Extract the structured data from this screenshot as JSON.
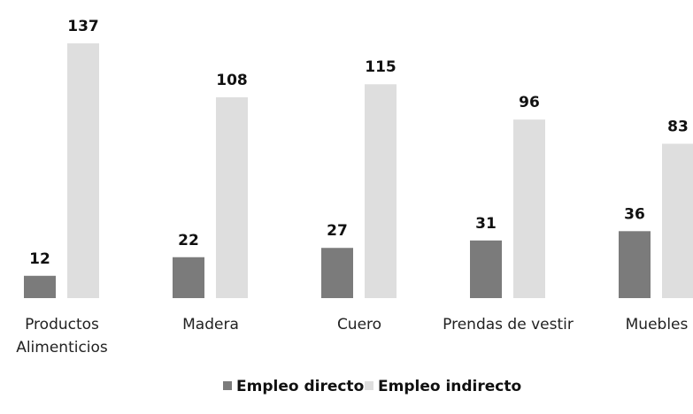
{
  "chart_data": {
    "type": "bar",
    "categories": [
      "Productos Alimenticios",
      "Madera",
      "Cuero",
      "Prendas de vestir",
      "Muebles"
    ],
    "series": [
      {
        "name": "Empleo directo",
        "color": "#7b7b7b",
        "values": [
          12,
          22,
          27,
          31,
          36
        ]
      },
      {
        "name": "Empleo indirecto",
        "color": "#dedede",
        "values": [
          137,
          108,
          115,
          96,
          83
        ]
      }
    ]
  }
}
